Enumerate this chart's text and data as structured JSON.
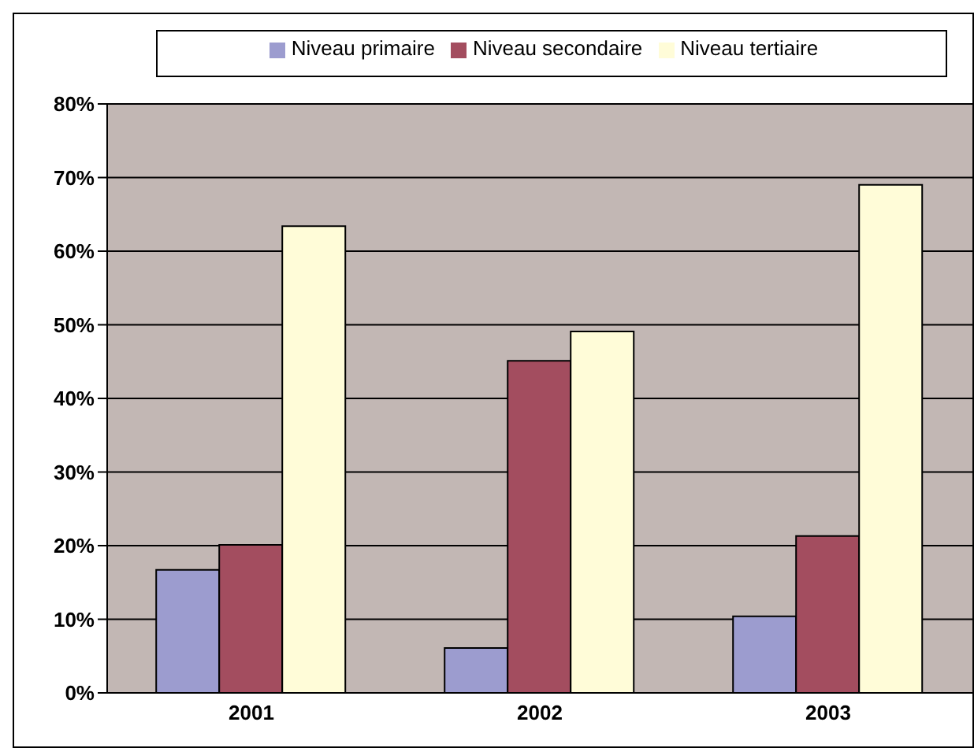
{
  "chart_data": {
    "type": "bar",
    "categories": [
      "2001",
      "2002",
      "2003"
    ],
    "series": [
      {
        "name": "Niveau primaire",
        "color": "#9c9ccf",
        "values": [
          16.7,
          6.1,
          10.4
        ]
      },
      {
        "name": "Niveau secondaire",
        "color": "#a34d5f",
        "values": [
          20.1,
          45.1,
          21.3
        ]
      },
      {
        "name": "Niveau tertiaire",
        "color": "#fffcd8",
        "values": [
          63.4,
          49.1,
          69.0
        ]
      }
    ],
    "ylim": [
      0,
      80
    ],
    "yticks": [
      {
        "value": 0,
        "label": "0%"
      },
      {
        "value": 10,
        "label": "10%"
      },
      {
        "value": 20,
        "label": "20%"
      },
      {
        "value": 30,
        "label": "30%"
      },
      {
        "value": 40,
        "label": "40%"
      },
      {
        "value": 50,
        "label": "50%"
      },
      {
        "value": 60,
        "label": "60%"
      },
      {
        "value": 70,
        "label": "70%"
      },
      {
        "value": 80,
        "label": "80%"
      }
    ],
    "grid": "y",
    "legend": "top"
  }
}
